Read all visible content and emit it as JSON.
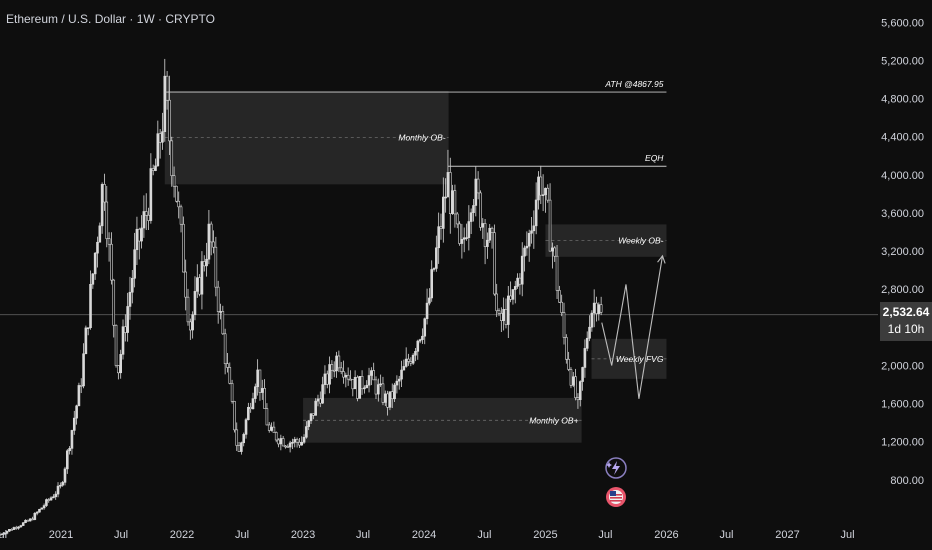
{
  "header": {
    "title": "Ethereum / U.S. Dollar · 1W · CRYPTO"
  },
  "price_badge": {
    "price": "2,532.64",
    "countdown": "1d 10h"
  },
  "colors": {
    "background": "#0e0e0e",
    "candle": "#d9d9d9",
    "zone": "#2a2a2a",
    "line": "#c8c8c8",
    "badge": "#3c3c3c"
  },
  "icons": [
    "lightning-icon",
    "flag-icon"
  ],
  "chart_data": {
    "type": "candlestick",
    "y_ticks": [
      "5,600.00",
      "5,200.00",
      "4,800.00",
      "4,400.00",
      "4,000.00",
      "3,600.00",
      "3,200.00",
      "2,800.00",
      "2,400.00",
      "2,000.00",
      "1,600.00",
      "1,200.00",
      "800.00"
    ],
    "y_tick_values": [
      5600,
      5200,
      4800,
      4400,
      4000,
      3600,
      3200,
      2800,
      2400,
      2000,
      1600,
      1200,
      800
    ],
    "x_ticks": [
      "Jul",
      "2021",
      "Jul",
      "2022",
      "Jul",
      "2023",
      "Jul",
      "2024",
      "Jul",
      "2025",
      "Jul",
      "2026",
      "Jul",
      "2027",
      "Jul"
    ],
    "x_tick_dates": [
      "2020-07-01",
      "2021-01-01",
      "2021-07-01",
      "2022-01-01",
      "2022-07-01",
      "2023-01-01",
      "2023-07-01",
      "2024-01-01",
      "2024-07-01",
      "2025-01-01",
      "2025-07-01",
      "2026-01-01",
      "2026-07-01",
      "2027-01-01",
      "2027-07-01"
    ],
    "ylim": [
      400,
      5750
    ],
    "xlim": [
      "2020-07-01",
      "2027-10-01"
    ],
    "current_price": 2532.64,
    "close_path": [
      [
        "2020-07-01",
        230
      ],
      [
        "2020-10-01",
        380
      ],
      [
        "2021-01-01",
        730
      ],
      [
        "2021-03-01",
        1800
      ],
      [
        "2021-05-10",
        4000
      ],
      [
        "2021-06-20",
        1900
      ],
      [
        "2021-08-15",
        3200
      ],
      [
        "2021-09-15",
        3600
      ],
      [
        "2021-10-20",
        4200
      ],
      [
        "2021-11-10",
        4800
      ],
      [
        "2021-12-15",
        3800
      ],
      [
        "2022-01-25",
        2400
      ],
      [
        "2022-03-25",
        3400
      ],
      [
        "2022-05-15",
        2000
      ],
      [
        "2022-06-20",
        1050
      ],
      [
        "2022-08-15",
        1950
      ],
      [
        "2022-09-20",
        1300
      ],
      [
        "2022-11-10",
        1200
      ],
      [
        "2022-12-30",
        1200
      ],
      [
        "2023-02-15",
        1650
      ],
      [
        "2023-04-15",
        2100
      ],
      [
        "2023-06-15",
        1750
      ],
      [
        "2023-07-15",
        1900
      ],
      [
        "2023-09-15",
        1600
      ],
      [
        "2023-11-15",
        2050
      ],
      [
        "2024-01-10",
        2550
      ],
      [
        "2024-03-12",
        3950
      ],
      [
        "2024-04-20",
        3100
      ],
      [
        "2024-05-25",
        3900
      ],
      [
        "2024-07-25",
        3200
      ],
      [
        "2024-08-10",
        2400
      ],
      [
        "2024-09-20",
        2650
      ],
      [
        "2024-11-10",
        3300
      ],
      [
        "2024-12-15",
        4000
      ],
      [
        "2025-01-20",
        3300
      ],
      [
        "2025-03-01",
        2200
      ],
      [
        "2025-04-09",
        1550
      ],
      [
        "2025-05-15",
        2550
      ],
      [
        "2025-06-10",
        2750
      ],
      [
        "2025-06-20",
        2450
      ]
    ],
    "zones": [
      {
        "label": "Monthly OB-",
        "from": "2021-11-10",
        "to": "2024-03-15",
        "low": 3900,
        "high": 4880
      },
      {
        "label": "Weekly OB-",
        "from": "2025-01-01",
        "to": "2026-01-01",
        "low": 3140,
        "high": 3480
      },
      {
        "label": "Weekly FVG",
        "from": "2025-05-20",
        "to": "2026-01-01",
        "low": 1860,
        "high": 2280
      },
      {
        "label": "Monthly OB+",
        "from": "2023-01-01",
        "to": "2025-04-20",
        "low": 1190,
        "high": 1660
      }
    ],
    "levels": [
      {
        "label": "ATH @4867.95",
        "value": 4867.95,
        "from": "2021-11-10",
        "to": "2026-01-01"
      },
      {
        "label": "EQH",
        "value": 4090,
        "from": "2024-03-12",
        "to": "2026-01-01"
      }
    ],
    "projection": [
      [
        "2025-06-20",
        2450
      ],
      [
        "2025-07-20",
        2000
      ],
      [
        "2025-09-01",
        2850
      ],
      [
        "2025-10-10",
        1650
      ],
      [
        "2025-12-20",
        3150
      ]
    ]
  }
}
